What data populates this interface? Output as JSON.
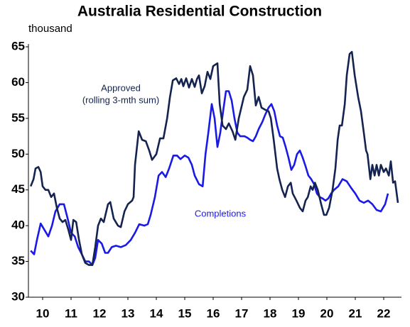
{
  "chart_data": {
    "type": "line",
    "title": "Australia Residential Construction",
    "y_label": "thousand",
    "annotations": [
      "Approved",
      "(rolling 3-mth sum)",
      "Completions"
    ],
    "xlim": [
      2010,
      2023.125
    ],
    "xticks": [
      {
        "value": 2010.5,
        "label": "10"
      },
      {
        "value": 2011.5,
        "label": "11"
      },
      {
        "value": 2012.5,
        "label": "12"
      },
      {
        "value": 2013.5,
        "label": "13"
      },
      {
        "value": 2014.5,
        "label": "14"
      },
      {
        "value": 2015.5,
        "label": "15"
      },
      {
        "value": 2016.5,
        "label": "16"
      },
      {
        "value": 2017.5,
        "label": "17"
      },
      {
        "value": 2018.5,
        "label": "18"
      },
      {
        "value": 2019.5,
        "label": "19"
      },
      {
        "value": 2020.5,
        "label": "20"
      },
      {
        "value": 2021.5,
        "label": "21"
      },
      {
        "value": 2022.5,
        "label": "22"
      }
    ],
    "ylim": [
      30,
      65
    ],
    "yticks": [
      30,
      35,
      40,
      45,
      50,
      55,
      60,
      65
    ],
    "grid": false,
    "series": [
      {
        "name": "Approved",
        "color": "#14234f",
        "x": [
          2010.08,
          2010.18,
          2010.25,
          2010.35,
          2010.43,
          2010.5,
          2010.6,
          2010.7,
          2010.8,
          2010.9,
          2011.0,
          2011.1,
          2011.2,
          2011.3,
          2011.4,
          2011.5,
          2011.58,
          2011.68,
          2011.78,
          2011.88,
          2012.0,
          2012.13,
          2012.25,
          2012.35,
          2012.45,
          2012.55,
          2012.65,
          2012.8,
          2012.88,
          2013.0,
          2013.15,
          2013.25,
          2013.38,
          2013.5,
          2013.65,
          2013.7,
          2013.75,
          2013.88,
          2014.0,
          2014.13,
          2014.25,
          2014.35,
          2014.5,
          2014.63,
          2014.75,
          2014.88,
          2014.98,
          2015.08,
          2015.2,
          2015.3,
          2015.38,
          2015.45,
          2015.55,
          2015.65,
          2015.75,
          2015.85,
          2015.93,
          2016.0,
          2016.1,
          2016.2,
          2016.3,
          2016.4,
          2016.5,
          2016.65,
          2016.73,
          2016.83,
          2016.95,
          2017.05,
          2017.18,
          2017.28,
          2017.4,
          2017.58,
          2017.7,
          2017.8,
          2017.9,
          2018.0,
          2018.1,
          2018.2,
          2018.33,
          2018.45,
          2018.53,
          2018.63,
          2018.75,
          2018.83,
          2018.93,
          2019.03,
          2019.13,
          2019.23,
          2019.3,
          2019.43,
          2019.55,
          2019.65,
          2019.75,
          2019.83,
          2019.93,
          2020.0,
          2020.08,
          2020.18,
          2020.3,
          2020.4,
          2020.48,
          2020.58,
          2020.7,
          2020.8,
          2020.88,
          2020.95,
          2021.03,
          2021.13,
          2021.2,
          2021.3,
          2021.38,
          2021.48,
          2021.6,
          2021.7,
          2021.8,
          2021.88,
          2021.93,
          2022.03,
          2022.1,
          2022.18,
          2022.25,
          2022.33,
          2022.4,
          2022.5,
          2022.58,
          2022.68,
          2022.75,
          2022.83,
          2022.9,
          2023.0
        ],
        "values": [
          45.5,
          46.5,
          48,
          48.2,
          47.5,
          45.5,
          45,
          45,
          44,
          44.5,
          42.5,
          41,
          40.5,
          40.8,
          39.5,
          38,
          40.8,
          40.5,
          38,
          36,
          34.8,
          34.5,
          34.5,
          37,
          40,
          41,
          40.5,
          43,
          43.3,
          41,
          40,
          39.8,
          42,
          43,
          43.5,
          44,
          48.5,
          53.2,
          52,
          51.8,
          50.5,
          49.2,
          50,
          52.2,
          52.2,
          55,
          58,
          60.3,
          60.6,
          59.8,
          60.5,
          59.5,
          60.6,
          59.3,
          60.5,
          59.4,
          60.5,
          61,
          58.5,
          59.5,
          61.5,
          60.5,
          62.3,
          62.7,
          57,
          54,
          53.5,
          54.3,
          53.2,
          52,
          55,
          58,
          59,
          62.3,
          61,
          56.8,
          58,
          56.5,
          56.2,
          56,
          55,
          52,
          48,
          46.5,
          45,
          44,
          45.5,
          46,
          44.5,
          43.5,
          42.5,
          42,
          43.5,
          44,
          45.5,
          45,
          46,
          45,
          43,
          41.5,
          41.5,
          42.5,
          45,
          48,
          52,
          54,
          54,
          57,
          61,
          64,
          64.3,
          61,
          58,
          56,
          53,
          50.5,
          50,
          46.5,
          48.5,
          47,
          48.5,
          47,
          48.5,
          47.5,
          48,
          47,
          49,
          46,
          46.2,
          43.2
        ]
      },
      {
        "name": "Completions",
        "color": "#1a1ae6",
        "x": [
          2010.08,
          2010.2,
          2010.3,
          2010.43,
          2010.55,
          2010.7,
          2010.83,
          2010.95,
          2011.1,
          2011.25,
          2011.38,
          2011.5,
          2011.63,
          2011.75,
          2011.88,
          2012.0,
          2012.13,
          2012.25,
          2012.35,
          2012.45,
          2012.58,
          2012.7,
          2012.8,
          2012.93,
          2013.08,
          2013.25,
          2013.43,
          2013.6,
          2013.75,
          2013.9,
          2014.08,
          2014.2,
          2014.3,
          2014.45,
          2014.58,
          2014.7,
          2014.83,
          2014.95,
          2015.1,
          2015.23,
          2015.35,
          2015.5,
          2015.63,
          2015.75,
          2015.85,
          2016.0,
          2016.13,
          2016.23,
          2016.33,
          2016.45,
          2016.55,
          2016.65,
          2016.75,
          2016.85,
          2016.95,
          2017.05,
          2017.15,
          2017.25,
          2017.35,
          2017.45,
          2017.6,
          2017.7,
          2017.8,
          2017.9,
          2018.0,
          2018.1,
          2018.23,
          2018.33,
          2018.45,
          2018.55,
          2018.65,
          2018.75,
          2018.85,
          2018.95,
          2019.05,
          2019.15,
          2019.25,
          2019.35,
          2019.45,
          2019.55,
          2019.65,
          2019.75,
          2019.85,
          2019.95,
          2020.05,
          2020.15,
          2020.25,
          2020.35,
          2020.45,
          2020.55,
          2020.65,
          2020.75,
          2020.9,
          2021.05,
          2021.2,
          2021.35,
          2021.5,
          2021.65,
          2021.8,
          2021.95,
          2022.1,
          2022.25,
          2022.4,
          2022.55,
          2022.65
        ],
        "values": [
          36.5,
          36,
          38,
          40.3,
          39.5,
          38.5,
          40,
          42,
          43,
          43,
          41,
          39,
          38.5,
          37,
          36,
          35,
          35,
          34.5,
          35.5,
          38,
          37.5,
          36.2,
          36.2,
          37,
          37.2,
          37,
          37.3,
          38,
          39,
          40.2,
          40,
          40.2,
          41.5,
          44,
          47,
          47.5,
          46.8,
          48,
          49.8,
          49.8,
          49.3,
          49.8,
          49.5,
          48.5,
          47,
          45.8,
          45.5,
          50,
          53,
          57,
          55,
          51,
          53,
          56,
          58.8,
          58.8,
          57.5,
          55,
          53,
          52.5,
          52.5,
          52.3,
          52,
          51.8,
          52.5,
          53.5,
          54.5,
          55.5,
          56.5,
          57,
          56,
          54,
          52.5,
          52.3,
          51,
          49.5,
          47.8,
          48.5,
          50,
          50.5,
          49.5,
          48.3,
          47,
          46.5,
          45.8,
          44.5,
          44,
          43.8,
          43.5,
          43.8,
          44.5,
          45,
          45.5,
          46.5,
          46.2,
          45.3,
          44.5,
          43.5,
          43.2,
          43.5,
          43,
          42.2,
          42,
          43,
          44.5
        ]
      }
    ]
  }
}
